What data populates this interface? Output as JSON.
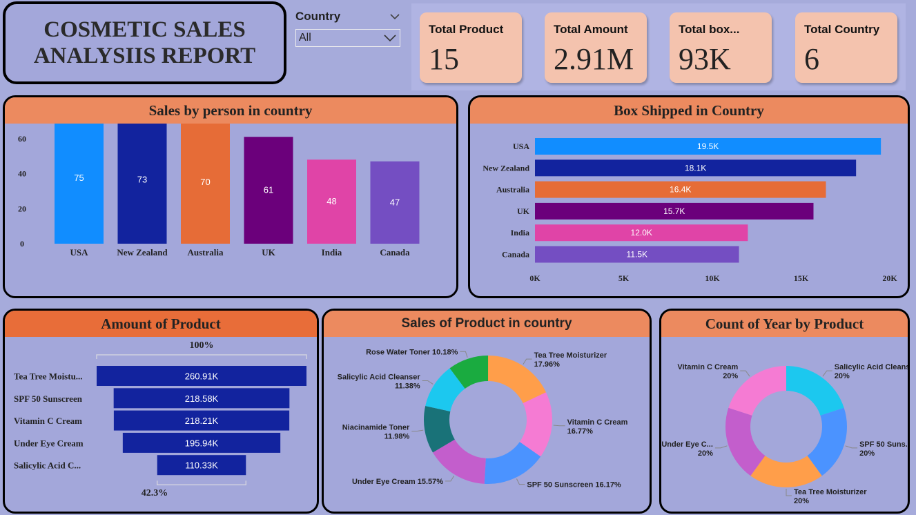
{
  "report": {
    "title_line1": "COSMETIC SALES",
    "title_line2": "ANALYSIIS REPORT"
  },
  "slicer": {
    "label": "Country",
    "selected": "All"
  },
  "kpis": [
    {
      "label": "Total Product",
      "value": "15"
    },
    {
      "label": "Total Amount",
      "value": "2.91M"
    },
    {
      "label": "Total box...",
      "value": "93K"
    },
    {
      "label": "Total Country",
      "value": "6"
    }
  ],
  "colors": {
    "USA": "#118dff",
    "New Zealand": "#12239e",
    "Australia": "#e66c37",
    "UK": "#6b007b",
    "India": "#e044a7",
    "Canada": "#744ec2"
  },
  "chart_data": [
    {
      "type": "bar",
      "title": "Sales by person in country",
      "categories": [
        "USA",
        "New Zealand",
        "Australia",
        "UK",
        "India",
        "Canada"
      ],
      "values": [
        75,
        73,
        70,
        61,
        48,
        47
      ],
      "ylim": [
        0,
        80
      ],
      "yticks": [
        "0",
        "20",
        "40",
        "60",
        "80"
      ]
    },
    {
      "type": "bar",
      "orientation": "horizontal",
      "title": "Box Shipped in Country",
      "categories": [
        "USA",
        "New Zealand",
        "Australia",
        "UK",
        "India",
        "Canada"
      ],
      "values": [
        19.5,
        18.1,
        16.4,
        15.7,
        12.0,
        11.5
      ],
      "labels": [
        "19.5K",
        "18.1K",
        "16.4K",
        "15.7K",
        "12.0K",
        "11.5K"
      ],
      "xlim": [
        0,
        20
      ],
      "xticks": [
        "0K",
        "5K",
        "10K",
        "15K",
        "20K"
      ]
    },
    {
      "type": "funnel",
      "title": "Amount of Product",
      "categories": [
        "Tea Tree Moistu...",
        "SPF 50 Sunscreen",
        "Vitamin C Cream",
        "Under Eye Cream",
        "Salicylic Acid C..."
      ],
      "values": [
        260.91,
        218.58,
        218.21,
        195.94,
        110.33
      ],
      "labels": [
        "260.91K",
        "218.58K",
        "218.21K",
        "195.94K",
        "110.33K"
      ],
      "top_percent": "100%",
      "bottom_percent": "42.3%",
      "color": "#12239e"
    },
    {
      "type": "pie",
      "title": "Sales of Product in country",
      "slices": [
        {
          "name": "Tea Tree Moisturizer",
          "percent": 17.96,
          "label": "17.96%",
          "color": "#ff9e4a"
        },
        {
          "name": "Vitamin C Cream",
          "percent": 16.77,
          "label": "16.77%",
          "color": "#f57bd3"
        },
        {
          "name": "SPF 50 Sunscreen",
          "percent": 16.17,
          "label": "16.17%",
          "color": "#4b93ff"
        },
        {
          "name": "Under Eye Cream",
          "percent": 15.57,
          "label": "15.57%",
          "color": "#c35ecc"
        },
        {
          "name": "Niacinamide Toner",
          "percent": 11.98,
          "label": "11.98%",
          "color": "#197278"
        },
        {
          "name": "Salicylic Acid Cleanser",
          "percent": 11.38,
          "label": "11.38%",
          "color": "#1cc8ef"
        },
        {
          "name": "Rose Water Toner",
          "percent": 10.18,
          "label": "10.18%",
          "color": "#1aab40"
        }
      ]
    },
    {
      "type": "pie",
      "title": "Count of Year by Product",
      "slices": [
        {
          "name": "Salicylic Acid Cleanser",
          "percent": 20,
          "label": "20%",
          "color": "#1cc8ef"
        },
        {
          "name": "SPF 50 Suns...",
          "percent": 20,
          "label": "20%",
          "color": "#4b93ff"
        },
        {
          "name": "Tea Tree Moisturizer",
          "percent": 20,
          "label": "20%",
          "color": "#ff9e4a"
        },
        {
          "name": "Under Eye C...",
          "percent": 20,
          "label": "20%",
          "color": "#c35ecc"
        },
        {
          "name": "Vitamin C Cream",
          "percent": 20,
          "label": "20%",
          "color": "#f57bd3"
        }
      ]
    }
  ]
}
